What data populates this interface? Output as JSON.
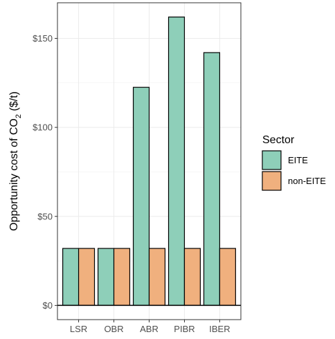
{
  "chart_data": {
    "type": "bar",
    "categories": [
      "LSR",
      "OBR",
      "ABR",
      "PIBR",
      "IBER"
    ],
    "series": [
      {
        "name": "EITE",
        "values": [
          32,
          32,
          122.5,
          162,
          142
        ],
        "color": "#8ecfb9"
      },
      {
        "name": "non-EITE",
        "values": [
          32,
          32,
          32,
          32,
          32
        ],
        "color": "#f0b07e"
      }
    ],
    "ylabel": "Opportunity cost of  CO",
    "ylabel_sub": "2",
    "ylabel_unit": " ($/t)",
    "xlabel": "",
    "yticks": [
      0,
      50,
      100,
      150
    ],
    "ytick_labels": [
      "$0",
      "$50",
      "$100",
      "$150"
    ],
    "ylim": [
      -8,
      170
    ],
    "legend": {
      "title": "Sector",
      "position": "right"
    },
    "grid": true
  }
}
